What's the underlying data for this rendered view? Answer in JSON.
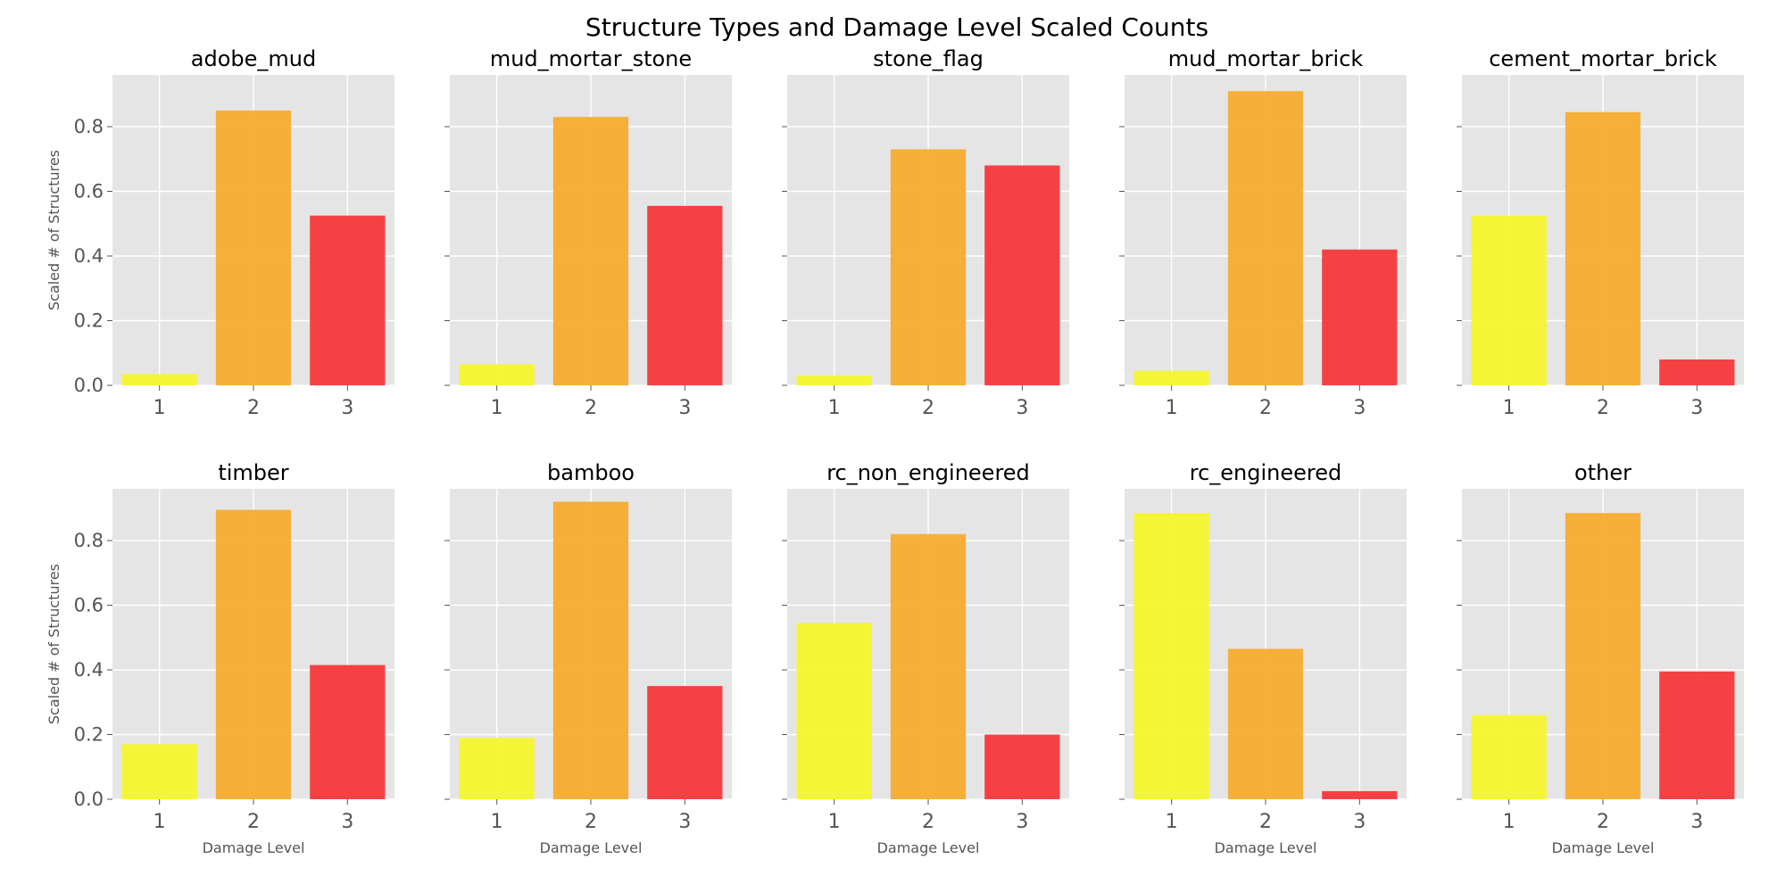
{
  "chart_data": {
    "type": "bar",
    "title": "Structure Types and Damage Level Scaled Counts",
    "categories": [
      "1",
      "2",
      "3"
    ],
    "xlabel": "Damage Level",
    "ylabel": "Scaled # of Structures",
    "ylim": [
      0,
      0.96
    ],
    "yticks": [
      "0.0",
      "0.2",
      "0.4",
      "0.6",
      "0.8"
    ],
    "grid": true,
    "bar_colors": [
      "#f5f52d",
      "#f7ac2f",
      "#f5383a"
    ],
    "panel_background": "#e5e5e5",
    "panels": [
      {
        "title": "adobe_mud",
        "values": [
          0.035,
          0.85,
          0.525
        ]
      },
      {
        "title": "mud_mortar_stone",
        "values": [
          0.065,
          0.83,
          0.555
        ]
      },
      {
        "title": "stone_flag",
        "values": [
          0.03,
          0.73,
          0.68
        ]
      },
      {
        "title": "mud_mortar_brick",
        "values": [
          0.045,
          0.91,
          0.42
        ]
      },
      {
        "title": "cement_mortar_brick",
        "values": [
          0.525,
          0.845,
          0.08
        ]
      },
      {
        "title": "timber",
        "values": [
          0.17,
          0.895,
          0.415
        ]
      },
      {
        "title": "bamboo",
        "values": [
          0.19,
          0.92,
          0.35
        ]
      },
      {
        "title": "rc_non_engineered",
        "values": [
          0.545,
          0.82,
          0.2
        ]
      },
      {
        "title": "rc_engineered",
        "values": [
          0.885,
          0.465,
          0.025
        ]
      },
      {
        "title": "other",
        "values": [
          0.26,
          0.885,
          0.395
        ]
      }
    ]
  }
}
